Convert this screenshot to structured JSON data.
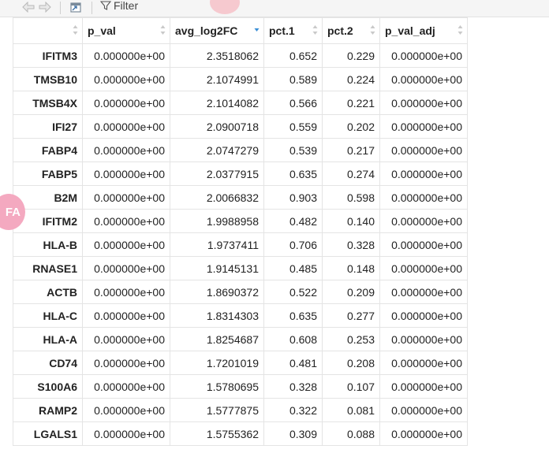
{
  "toolbar": {
    "back_icon": "arrow-left-icon",
    "forward_icon": "arrow-right-icon",
    "popout_icon": "popout-window-icon",
    "filter_icon": "funnel-icon",
    "filter_label": "Filter"
  },
  "avatar": {
    "text": "FA",
    "color": "#f4a9c0"
  },
  "table": {
    "columns": [
      "",
      "p_val",
      "avg_log2FC",
      "pct.1",
      "pct.2",
      "p_val_adj"
    ],
    "sorted_column": "avg_log2FC",
    "sort_direction": "descending",
    "sort_active_color": "#3a8fd6",
    "rows": [
      {
        "name": "IFITM3",
        "p_val": "0.000000e+00",
        "avg_log2FC": "2.3518062",
        "pct1": "0.652",
        "pct2": "0.229",
        "p_val_adj": "0.000000e+00"
      },
      {
        "name": "TMSB10",
        "p_val": "0.000000e+00",
        "avg_log2FC": "2.1074991",
        "pct1": "0.589",
        "pct2": "0.224",
        "p_val_adj": "0.000000e+00"
      },
      {
        "name": "TMSB4X",
        "p_val": "0.000000e+00",
        "avg_log2FC": "2.1014082",
        "pct1": "0.566",
        "pct2": "0.221",
        "p_val_adj": "0.000000e+00"
      },
      {
        "name": "IFI27",
        "p_val": "0.000000e+00",
        "avg_log2FC": "2.0900718",
        "pct1": "0.559",
        "pct2": "0.202",
        "p_val_adj": "0.000000e+00"
      },
      {
        "name": "FABP4",
        "p_val": "0.000000e+00",
        "avg_log2FC": "2.0747279",
        "pct1": "0.539",
        "pct2": "0.217",
        "p_val_adj": "0.000000e+00"
      },
      {
        "name": "FABP5",
        "p_val": "0.000000e+00",
        "avg_log2FC": "2.0377915",
        "pct1": "0.635",
        "pct2": "0.274",
        "p_val_adj": "0.000000e+00"
      },
      {
        "name": "B2M",
        "p_val": "0.000000e+00",
        "avg_log2FC": "2.0066832",
        "pct1": "0.903",
        "pct2": "0.598",
        "p_val_adj": "0.000000e+00"
      },
      {
        "name": "IFITM2",
        "p_val": "0.000000e+00",
        "avg_log2FC": "1.9988958",
        "pct1": "0.482",
        "pct2": "0.140",
        "p_val_adj": "0.000000e+00"
      },
      {
        "name": "HLA-B",
        "p_val": "0.000000e+00",
        "avg_log2FC": "1.9737411",
        "pct1": "0.706",
        "pct2": "0.328",
        "p_val_adj": "0.000000e+00"
      },
      {
        "name": "RNASE1",
        "p_val": "0.000000e+00",
        "avg_log2FC": "1.9145131",
        "pct1": "0.485",
        "pct2": "0.148",
        "p_val_adj": "0.000000e+00"
      },
      {
        "name": "ACTB",
        "p_val": "0.000000e+00",
        "avg_log2FC": "1.8690372",
        "pct1": "0.522",
        "pct2": "0.209",
        "p_val_adj": "0.000000e+00"
      },
      {
        "name": "HLA-C",
        "p_val": "0.000000e+00",
        "avg_log2FC": "1.8314303",
        "pct1": "0.635",
        "pct2": "0.277",
        "p_val_adj": "0.000000e+00"
      },
      {
        "name": "HLA-A",
        "p_val": "0.000000e+00",
        "avg_log2FC": "1.8254687",
        "pct1": "0.608",
        "pct2": "0.253",
        "p_val_adj": "0.000000e+00"
      },
      {
        "name": "CD74",
        "p_val": "0.000000e+00",
        "avg_log2FC": "1.7201019",
        "pct1": "0.481",
        "pct2": "0.208",
        "p_val_adj": "0.000000e+00"
      },
      {
        "name": "S100A6",
        "p_val": "0.000000e+00",
        "avg_log2FC": "1.5780695",
        "pct1": "0.328",
        "pct2": "0.107",
        "p_val_adj": "0.000000e+00"
      },
      {
        "name": "RAMP2",
        "p_val": "0.000000e+00",
        "avg_log2FC": "1.5777875",
        "pct1": "0.322",
        "pct2": "0.081",
        "p_val_adj": "0.000000e+00"
      },
      {
        "name": "LGALS1",
        "p_val": "0.000000e+00",
        "avg_log2FC": "1.5755362",
        "pct1": "0.309",
        "pct2": "0.088",
        "p_val_adj": "0.000000e+00"
      }
    ]
  }
}
